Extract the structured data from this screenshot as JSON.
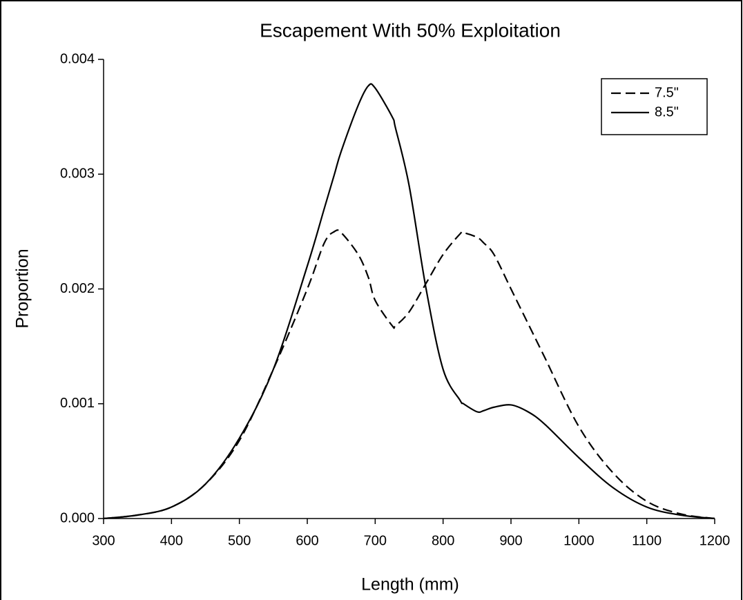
{
  "chart_data": {
    "type": "line",
    "title": "Escapement With 50% Exploitation",
    "x_label": "Length (mm)",
    "y_label": "Proportion",
    "x": [
      300,
      350,
      400,
      450,
      500,
      550,
      600,
      625,
      640,
      650,
      675,
      690,
      700,
      725,
      730,
      750,
      775,
      800,
      825,
      830,
      850,
      860,
      875,
      900,
      925,
      950,
      1000,
      1050,
      1100,
      1150,
      1200
    ],
    "series": [
      {
        "name": "7.5\"",
        "color": "#000000",
        "dash": true,
        "values": [
          0,
          3e-05,
          0.0001,
          0.0003,
          0.00068,
          0.0013,
          0.002,
          0.0024,
          0.0025,
          0.00249,
          0.0023,
          0.0021,
          0.0019,
          0.00168,
          0.00168,
          0.0018,
          0.00205,
          0.0023,
          0.00248,
          0.00249,
          0.00245,
          0.0024,
          0.0023,
          0.002,
          0.0017,
          0.0014,
          0.0008,
          0.0004,
          0.00015,
          4e-05,
          0
        ]
      },
      {
        "name": "8.5\"",
        "color": "#000000",
        "dash": false,
        "values": [
          0,
          3e-05,
          0.0001,
          0.0003,
          0.0007,
          0.0013,
          0.0022,
          0.0027,
          0.003,
          0.0032,
          0.0036,
          0.00377,
          0.00375,
          0.0035,
          0.0034,
          0.0029,
          0.002,
          0.0013,
          0.00103,
          0.001,
          0.00093,
          0.00094,
          0.00097,
          0.00099,
          0.00093,
          0.00082,
          0.00053,
          0.00027,
          0.0001,
          3e-05,
          0
        ]
      }
    ],
    "xlim": [
      300,
      1200
    ],
    "xticks": [
      300,
      400,
      500,
      600,
      700,
      800,
      900,
      1000,
      1100,
      1200
    ],
    "ylim": [
      0,
      0.004
    ],
    "yticks": [
      {
        "value": 0,
        "label": "0.000"
      },
      {
        "value": 0.001,
        "label": "0.001"
      },
      {
        "value": 0.002,
        "label": "0.002"
      },
      {
        "value": 0.003,
        "label": "0.003"
      },
      {
        "value": 0.004,
        "label": "0.004"
      }
    ],
    "legend": "upper right"
  }
}
